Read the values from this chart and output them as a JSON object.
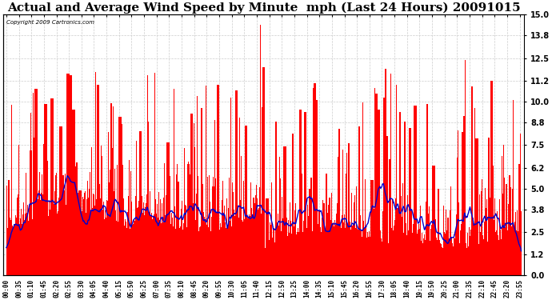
{
  "title": "Actual and Average Wind Speed by Minute  mph (Last 24 Hours) 20091015",
  "copyright": "Copyright 2009 Cartronics.com",
  "yticks": [
    0.0,
    1.2,
    2.5,
    3.8,
    5.0,
    6.2,
    7.5,
    8.8,
    10.0,
    11.2,
    12.5,
    13.8,
    15.0
  ],
  "ylim": [
    0,
    15.0
  ],
  "bar_color": "#FF0000",
  "line_color": "#0000CC",
  "bg_color": "#FFFFFF",
  "grid_color": "#CCCCCC",
  "title_fontsize": 11,
  "figsize": [
    6.9,
    3.75
  ],
  "dpi": 100
}
